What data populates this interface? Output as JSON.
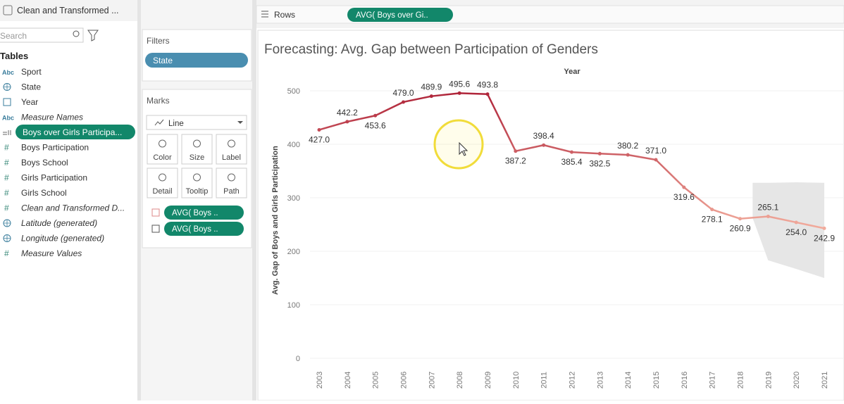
{
  "data_pane": {
    "source": "Clean and Transformed ...",
    "search_placeholder": "Search",
    "tables_heading": "Tables",
    "fields": [
      {
        "icon": "Abc",
        "name": "Sport"
      },
      {
        "name": "State"
      },
      {
        "name": "Year"
      },
      {
        "icon": "Abc",
        "name": "Measure Names"
      },
      {
        "name": "Boys over Girls Participa..."
      },
      {
        "icon": "#",
        "name": "Boys Participation"
      },
      {
        "icon": "#",
        "name": "Boys School"
      },
      {
        "icon": "#",
        "name": "Girls Participation"
      },
      {
        "icon": "#",
        "name": "Girls School"
      },
      {
        "icon": "#",
        "name": "Clean and Transformed D..."
      },
      {
        "name": "Latitude (generated)"
      },
      {
        "name": "Longitude (generated)"
      },
      {
        "icon": "#",
        "name": "Measure Values"
      }
    ]
  },
  "filters": {
    "title": "Filters",
    "pills": [
      "State"
    ]
  },
  "marks": {
    "title": "Marks",
    "mark_type": "Line",
    "buttons": [
      "Color",
      "Size",
      "Label",
      "Detail",
      "Tooltip",
      "Path"
    ],
    "pills": [
      "AVG( Boys ..",
      "AVG( Boys .."
    ]
  },
  "rows": {
    "label": "Rows",
    "pill": "AVG( Boys over Gi.."
  },
  "chart_data": {
    "type": "line",
    "title": "Forecasting: Avg. Gap between Participation of Genders",
    "x_label": "Year",
    "y_label": "Avg. Gap of Boys and Girls Participation",
    "categories": [
      "2003",
      "2004",
      "2005",
      "2006",
      "2007",
      "2008",
      "2009",
      "2010",
      "2011",
      "2012",
      "2013",
      "2014",
      "2015",
      "2016",
      "2017",
      "2018",
      "2019",
      "2020",
      "2021"
    ],
    "values": [
      427.0,
      442.2,
      453.6,
      479.0,
      489.9,
      495.6,
      493.8,
      387.2,
      398.4,
      385.4,
      382.5,
      380.2,
      371.0,
      319.6,
      278.1,
      260.9,
      265.1,
      254.0,
      242.9
    ],
    "value_labels": [
      "427.0",
      "442.2",
      "453.6",
      "479.0",
      "489.9",
      "495.6",
      "493.8",
      "387.2",
      "398.4",
      "385.4",
      "382.5",
      "380.2",
      "371.0",
      "319.6",
      "278.1",
      "260.9",
      "265.1",
      "254.0",
      "242.9"
    ],
    "color_range": [
      "#f2ab9c",
      "#b0253a"
    ],
    "forecast_band": {
      "categories": [
        "2019",
        "2020",
        "2021"
      ],
      "upper": [
        328,
        329,
        328
      ],
      "lower": [
        183,
        167,
        150
      ],
      "color": "#e6e6e6"
    },
    "ylim": [
      0,
      500
    ],
    "yticks": [
      0,
      100,
      200,
      300,
      400,
      500
    ],
    "grid": true
  }
}
